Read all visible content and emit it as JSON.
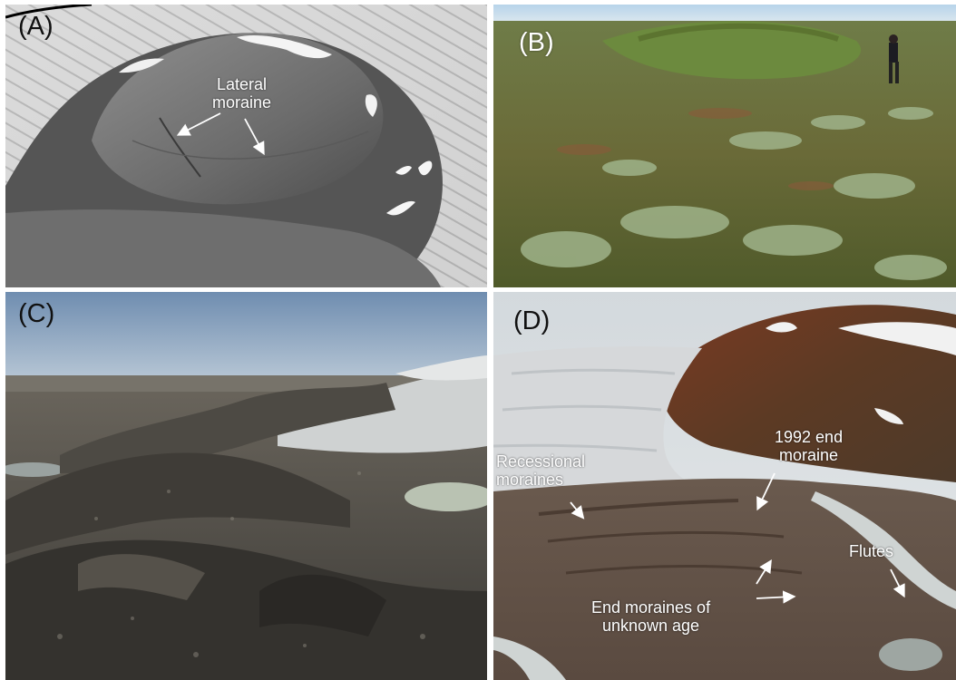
{
  "figure": {
    "panels": [
      {
        "label": "(A)",
        "annotations": [
          "Lateral moraine"
        ],
        "annotation_lines": [
          "Lateral",
          "moraine"
        ]
      },
      {
        "label": "(B)"
      },
      {
        "label": "(C)"
      },
      {
        "label": "(D)",
        "annotation_lines": {
          "recessional_1": "Recessional",
          "recessional_2": "moraines",
          "end1992_1": "1992 end",
          "end1992_2": "moraine",
          "flutes": "Flutes",
          "unknown_1": "End moraines of",
          "unknown_2": "unknown age"
        }
      }
    ]
  }
}
